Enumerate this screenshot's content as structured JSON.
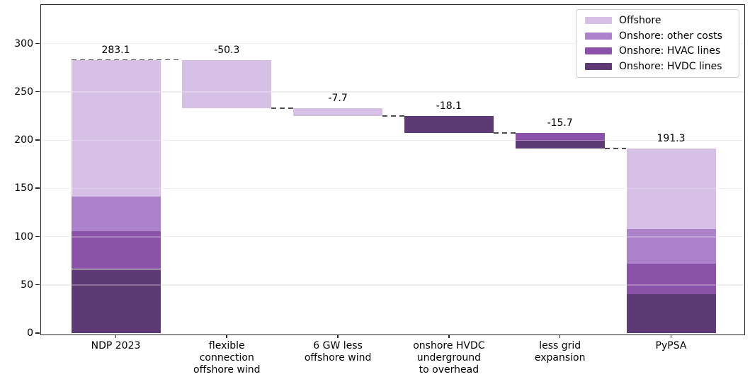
{
  "chart_data": {
    "type": "bar",
    "subtype": "stacked_waterfall",
    "title": "",
    "xlabel": "",
    "ylabel": "",
    "ylim": [
      0,
      340
    ],
    "yticks": [
      0,
      50,
      100,
      150,
      200,
      250,
      300
    ],
    "grid": "horizontal",
    "legend_position": "upper right",
    "series_colors": {
      "Offshore": "#d6c0e6",
      "Onshore: other costs": "#ac82cb",
      "Onshore: HVAC lines": "#8a52a8",
      "Onshore: HVDC lines": "#5d3a73"
    },
    "legend_entries": [
      {
        "label": "Offshore",
        "color": "#d6c0e6"
      },
      {
        "label": "Onshore: other costs",
        "color": "#ac82cb"
      },
      {
        "label": "Onshore: HVAC lines",
        "color": "#8a52a8"
      },
      {
        "label": "Onshore: HVDC lines",
        "color": "#5d3a73"
      }
    ],
    "categories": [
      {
        "name": "NDP 2023",
        "label_lines": "NDP 2023"
      },
      {
        "name": "flexible connection offshore wind",
        "label_lines": "flexible\nconnection\noffshore wind"
      },
      {
        "name": "6 GW less offshore wind",
        "label_lines": "6 GW less\noffshore wind"
      },
      {
        "name": "onshore HVDC underground to overhead",
        "label_lines": "onshore HVDC\nunderground\nto overhead"
      },
      {
        "name": "less grid expansion",
        "label_lines": "less grid\nexpansion"
      },
      {
        "name": "PyPSA",
        "label_lines": "PyPSA"
      }
    ],
    "bars": [
      {
        "category": "NDP 2023",
        "value_label": "283.1",
        "label_level": 283.1,
        "segments": [
          {
            "series": "Onshore: HVDC lines",
            "from": 0,
            "to": 66.3
          },
          {
            "series": "Onshore: HVAC lines",
            "from": 66.3,
            "to": 105.5
          },
          {
            "series": "Onshore: other costs",
            "from": 105.5,
            "to": 141.4
          },
          {
            "series": "Offshore",
            "from": 141.4,
            "to": 283.1
          }
        ]
      },
      {
        "category": "flexible connection offshore wind",
        "value_label": "-50.3",
        "label_level": 283.1,
        "segments": [
          {
            "series": "Offshore",
            "from": 232.8,
            "to": 283.1
          }
        ]
      },
      {
        "category": "6 GW less offshore wind",
        "value_label": "-7.7",
        "label_level": 232.8,
        "segments": [
          {
            "series": "Offshore",
            "from": 225.1,
            "to": 232.8
          }
        ]
      },
      {
        "category": "onshore HVDC underground to overhead",
        "value_label": "-18.1",
        "label_level": 225.1,
        "segments": [
          {
            "series": "Onshore: HVDC lines",
            "from": 207.0,
            "to": 225.1
          }
        ]
      },
      {
        "category": "less grid expansion",
        "value_label": "-15.7",
        "label_level": 207.0,
        "segments": [
          {
            "series": "Onshore: HVAC lines",
            "from": 199.2,
            "to": 207.0
          },
          {
            "series": "Onshore: HVDC lines",
            "from": 191.3,
            "to": 199.2
          }
        ]
      },
      {
        "category": "PyPSA",
        "value_label": "191.3",
        "label_level": 191.3,
        "segments": [
          {
            "series": "Onshore: HVDC lines",
            "from": 0,
            "to": 40.2
          },
          {
            "series": "Onshore: HVAC lines",
            "from": 40.2,
            "to": 71.7
          },
          {
            "series": "Onshore: other costs",
            "from": 71.7,
            "to": 107.6
          },
          {
            "series": "Offshore",
            "from": 107.6,
            "to": 191.3
          }
        ]
      }
    ],
    "connectors": [
      {
        "level": 283.1,
        "from_bar": 0,
        "to_bar": 1,
        "from_edge": "left"
      },
      {
        "level": 232.8,
        "from_bar": 1,
        "to_bar": 2,
        "from_edge": "right"
      },
      {
        "level": 225.1,
        "from_bar": 2,
        "to_bar": 3,
        "from_edge": "right"
      },
      {
        "level": 207.0,
        "from_bar": 3,
        "to_bar": 4,
        "from_edge": "right"
      },
      {
        "level": 191.3,
        "from_bar": 4,
        "to_bar": 5,
        "from_edge": "right"
      }
    ],
    "style_colors": {
      "gridline": "#e7e7e7",
      "connector": "#4d4d4d",
      "spine": "#262626",
      "text": "#000000"
    }
  }
}
